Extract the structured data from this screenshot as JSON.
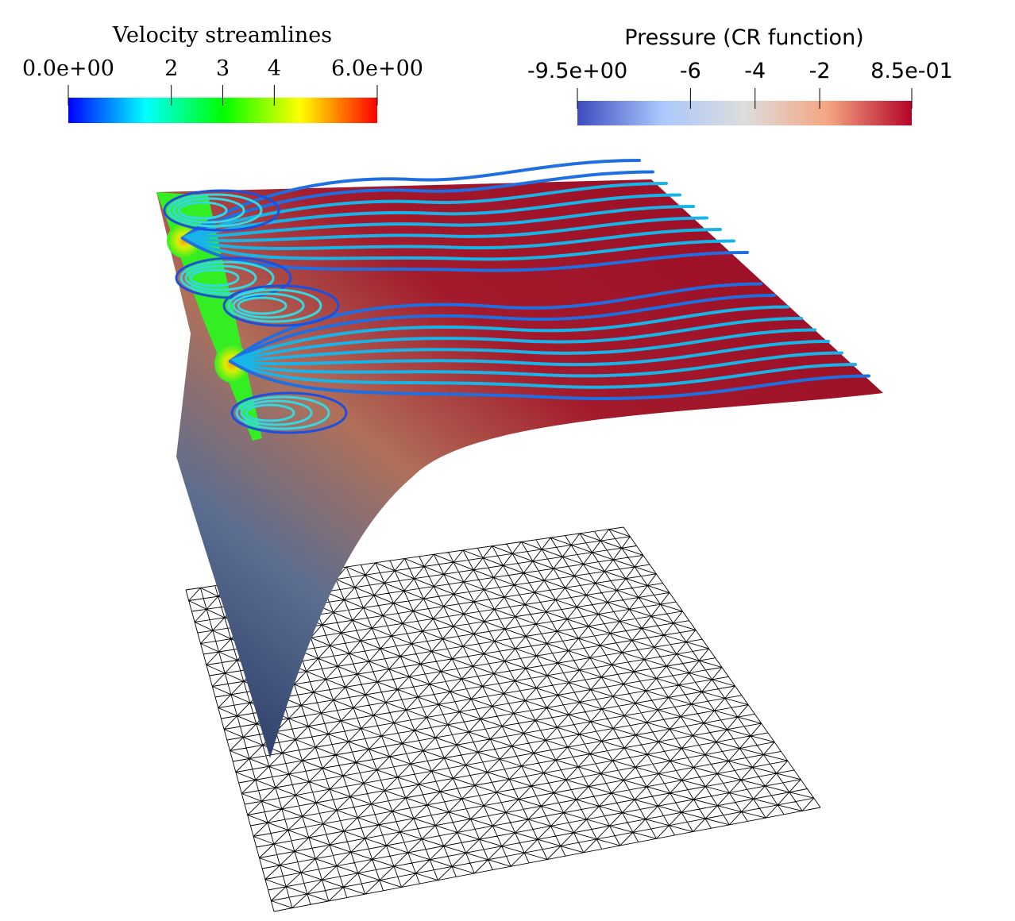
{
  "colorbars": [
    {
      "title": "Velocity streamlines",
      "range": [
        0,
        6
      ],
      "ticks": [
        {
          "value": 0,
          "label": "0.0e+00"
        },
        2,
        3,
        4,
        {
          "value": 6,
          "label": "6.0e+00"
        }
      ],
      "colors": [
        "#0000ff",
        "#00ffff",
        "#00ff00",
        "#ffff00",
        "#ff0000"
      ]
    },
    {
      "title": "Pressure (CR function)",
      "range": [
        -9.5,
        0.85
      ],
      "ticks": [
        {
          "value": -9.5,
          "label": "-9.5e+00"
        },
        -6,
        -4,
        -2,
        {
          "value": 0.85,
          "label": "8.5e-01"
        }
      ],
      "colors": [
        "#3b4cc0",
        "#aac7fd",
        "#dddddd",
        "#f4a582",
        "#b40426"
      ]
    }
  ]
}
